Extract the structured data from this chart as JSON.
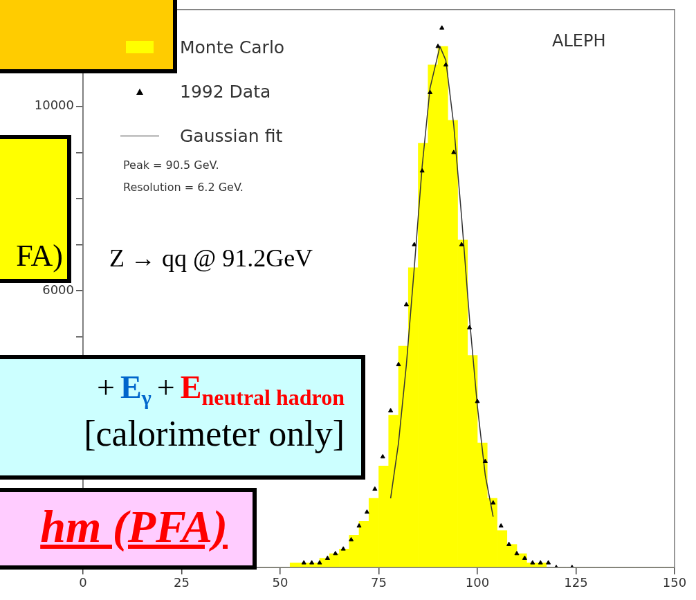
{
  "chart_data": {
    "type": "histogram",
    "legend": "top left",
    "grid": false,
    "xlim": [
      0,
      150
    ],
    "xticks": [
      0,
      25,
      50,
      75,
      100,
      125,
      150
    ],
    "ylim": [
      0,
      12100
    ],
    "yticks": [
      {
        "value": 5000,
        "label": null
      },
      {
        "value": 6000,
        "label": "6000"
      },
      {
        "value": 7000,
        "label": null
      },
      {
        "value": 8000,
        "label": null
      },
      {
        "value": 9000,
        "label": null
      },
      {
        "value": 10000,
        "label": "10000"
      },
      {
        "value": 11000,
        "label": null
      },
      {
        "value": 12000,
        "label": null
      }
    ],
    "series": [
      {
        "name": "Monte Carlo",
        "color": "#ffff00",
        "bins": [
          45,
          47.5,
          50,
          52.5,
          55,
          57.5,
          60,
          62.5,
          65,
          67.5,
          70,
          72.5,
          75,
          77.5,
          80,
          82.5,
          85,
          87.5,
          90,
          92.5,
          95,
          97.5,
          100,
          102.5,
          105,
          107.5,
          110,
          112.5,
          115,
          117.5,
          120,
          122.5,
          125,
          127.5,
          130,
          132.5,
          135,
          137.5,
          140,
          142.5,
          145,
          147.5,
          150
        ],
        "values": [
          0,
          0,
          0,
          100,
          100,
          100,
          200,
          300,
          400,
          700,
          1000,
          1500,
          2200,
          3300,
          4800,
          6500,
          9200,
          10900,
          11300,
          9700,
          7100,
          4600,
          2700,
          1500,
          800,
          500,
          300,
          100,
          100,
          0,
          0,
          0,
          0,
          0,
          0,
          0,
          0,
          0,
          0,
          0,
          0,
          0
        ]
      },
      {
        "name": "1992 Data",
        "type": "scatter",
        "marker": "triangle",
        "color": "#000000",
        "x": [
          56,
          58,
          60,
          62,
          64,
          66,
          68,
          70,
          72,
          74,
          76,
          78,
          80,
          82,
          84,
          86,
          88,
          90,
          91,
          92,
          94,
          96,
          98,
          100,
          102,
          104,
          106,
          108,
          110,
          112,
          114,
          116,
          118,
          120,
          124
        ],
        "values": [
          100,
          100,
          100,
          200,
          300,
          400,
          600,
          900,
          1200,
          1700,
          2400,
          3400,
          4400,
          5700,
          7000,
          8600,
          10300,
          11300,
          11700,
          10900,
          9000,
          7000,
          5200,
          3600,
          2300,
          1400,
          900,
          500,
          300,
          200,
          100,
          100,
          100,
          0,
          0
        ]
      },
      {
        "name": "Gaussian fit",
        "type": "line",
        "line_style": "solid",
        "color": "#333333",
        "x": [
          78,
          80,
          82,
          84,
          86,
          88,
          90.5,
          92,
          94,
          96,
          98,
          100,
          102,
          104
        ],
        "values": [
          1500,
          2700,
          4400,
          6500,
          8700,
          10400,
          11300,
          11000,
          9600,
          7600,
          5400,
          3500,
          2000,
          1100
        ]
      }
    ],
    "annotations": [
      "Z → qq @ 91.2GeV",
      "ALEPH",
      "Peak = 90.5 GeV.",
      "Resolution = 6.2 GeV.",
      "FA)",
      "+",
      "E$_{γ}$",
      "+",
      "E$_{neutral hadron}$",
      "[calorimeter only]",
      "hm (PFA)"
    ]
  }
}
